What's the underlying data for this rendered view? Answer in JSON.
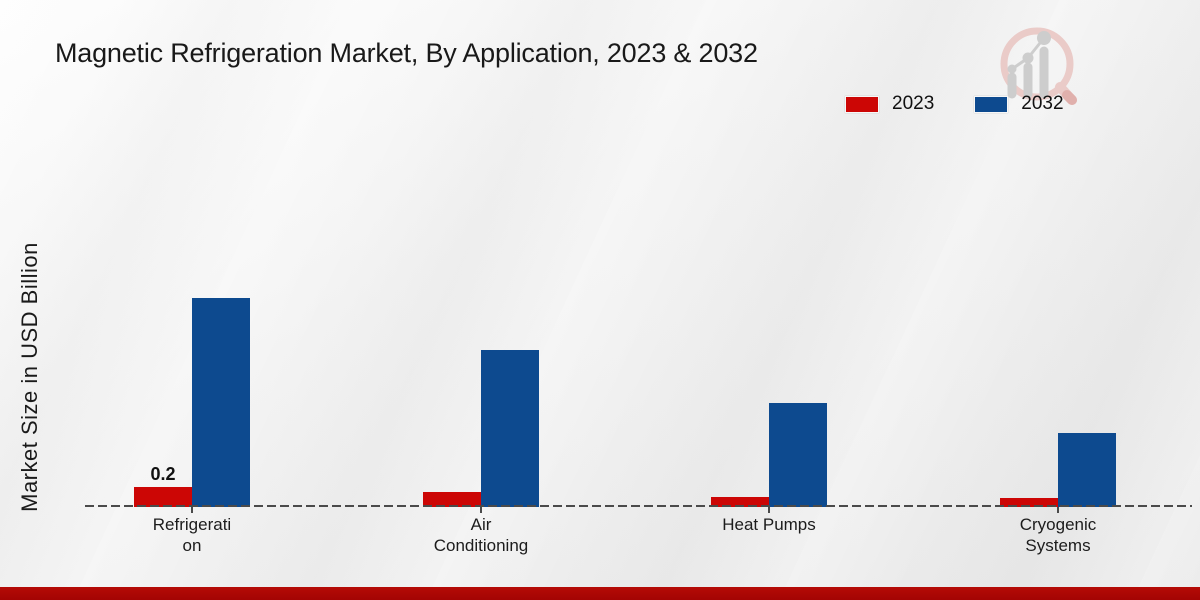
{
  "page": {
    "title": "Magnetic Refrigeration Market, By Application, 2023 & 2032",
    "y_axis_label": "Market Size in USD Billion",
    "footer_bar_color": "#b50b06",
    "accent_red": "#cc0605",
    "accent_blue": "#0d4a8f"
  },
  "legend": {
    "items": [
      {
        "label": "2023",
        "color": "#cc0605"
      },
      {
        "label": "2032",
        "color": "#0d4a8f"
      }
    ]
  },
  "logo": {
    "name": "market-research-future-logo"
  },
  "chart_data": {
    "type": "bar",
    "title": "Magnetic Refrigeration Market, By Application, 2023 & 2032",
    "xlabel": "",
    "ylabel": "Market Size in USD Billion",
    "categories": [
      "Refrigeration",
      "Air Conditioning",
      "Heat Pumps",
      "Cryogenic Systems"
    ],
    "categories_display": [
      [
        "Refrigerati",
        "on"
      ],
      [
        "Air",
        "Conditioning"
      ],
      [
        "Heat Pumps"
      ],
      [
        "Cryogenic",
        "Systems"
      ]
    ],
    "series": [
      {
        "name": "2023",
        "color": "#cc0605",
        "values": [
          0.2,
          0.15,
          0.1,
          0.09
        ]
      },
      {
        "name": "2032",
        "color": "#0d4a8f",
        "values": [
          2.09,
          1.57,
          1.04,
          0.74
        ]
      }
    ],
    "data_labels": [
      {
        "series": "2023",
        "category": "Refrigeration",
        "text": "0.2"
      }
    ],
    "ylim": [
      0,
      2.2
    ],
    "grid": false,
    "legend_position": "top-right",
    "baseline_style": "dashed"
  }
}
